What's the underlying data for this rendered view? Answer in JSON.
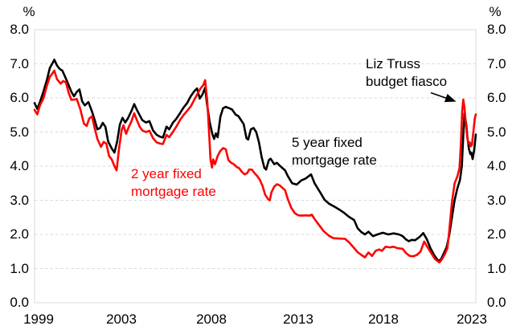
{
  "chart_data": {
    "type": "line",
    "y_axis": {
      "unit_left": "%",
      "unit_right": "%",
      "range": [
        0,
        8
      ],
      "tick_labels": [
        "8.0",
        "7.0",
        "6.0",
        "5.0",
        "4.0",
        "3.0",
        "2.0",
        "1.0",
        "0.0"
      ],
      "gridlines": "horizontal-dashed",
      "sides": "both"
    },
    "x_axis": {
      "range_years": [
        1999,
        2023.58
      ],
      "tick_labels": [
        "1999",
        "2003",
        "2008",
        "2013",
        "2018",
        "2023"
      ]
    },
    "annotation": {
      "line1": "Liz Truss",
      "line2": "budget fiasco"
    },
    "series": [
      {
        "name": "5 year fixed mortgage rate",
        "label_line1": "5 year fixed",
        "label_line2": "mortgage rate",
        "color": "#000000",
        "points": [
          [
            1999.0,
            5.85
          ],
          [
            1999.15,
            5.68
          ],
          [
            1999.3,
            5.88
          ],
          [
            1999.5,
            6.2
          ],
          [
            1999.7,
            6.55
          ],
          [
            1999.85,
            6.88
          ],
          [
            2000.0,
            7.02
          ],
          [
            2000.1,
            7.12
          ],
          [
            2000.25,
            6.95
          ],
          [
            2000.4,
            6.85
          ],
          [
            2000.55,
            6.8
          ],
          [
            2000.7,
            6.62
          ],
          [
            2000.88,
            6.4
          ],
          [
            2001.05,
            6.18
          ],
          [
            2001.2,
            6.05
          ],
          [
            2001.35,
            6.18
          ],
          [
            2001.5,
            6.25
          ],
          [
            2001.65,
            5.9
          ],
          [
            2001.8,
            5.78
          ],
          [
            2002.0,
            5.88
          ],
          [
            2002.2,
            5.6
          ],
          [
            2002.35,
            5.35
          ],
          [
            2002.5,
            5.08
          ],
          [
            2002.65,
            5.12
          ],
          [
            2002.8,
            5.27
          ],
          [
            2002.95,
            5.15
          ],
          [
            2003.1,
            4.72
          ],
          [
            2003.3,
            4.52
          ],
          [
            2003.45,
            4.4
          ],
          [
            2003.6,
            4.72
          ],
          [
            2003.75,
            5.22
          ],
          [
            2003.9,
            5.42
          ],
          [
            2004.05,
            5.28
          ],
          [
            2004.2,
            5.4
          ],
          [
            2004.4,
            5.62
          ],
          [
            2004.55,
            5.82
          ],
          [
            2004.7,
            5.65
          ],
          [
            2004.85,
            5.5
          ],
          [
            2005.0,
            5.35
          ],
          [
            2005.2,
            5.28
          ],
          [
            2005.4,
            5.32
          ],
          [
            2005.6,
            5.05
          ],
          [
            2005.8,
            4.92
          ],
          [
            2006.0,
            4.86
          ],
          [
            2006.15,
            4.84
          ],
          [
            2006.35,
            5.16
          ],
          [
            2006.5,
            5.08
          ],
          [
            2006.7,
            5.27
          ],
          [
            2006.9,
            5.39
          ],
          [
            2007.1,
            5.55
          ],
          [
            2007.3,
            5.72
          ],
          [
            2007.5,
            5.85
          ],
          [
            2007.7,
            6.05
          ],
          [
            2007.9,
            6.2
          ],
          [
            2008.05,
            6.28
          ],
          [
            2008.2,
            5.98
          ],
          [
            2008.35,
            6.1
          ],
          [
            2008.5,
            6.3
          ],
          [
            2008.6,
            5.85
          ],
          [
            2008.75,
            5.3
          ],
          [
            2008.9,
            4.95
          ],
          [
            2009.0,
            4.8
          ],
          [
            2009.1,
            4.96
          ],
          [
            2009.2,
            4.85
          ],
          [
            2009.35,
            5.45
          ],
          [
            2009.5,
            5.7
          ],
          [
            2009.65,
            5.74
          ],
          [
            2009.85,
            5.7
          ],
          [
            2010.0,
            5.66
          ],
          [
            2010.2,
            5.51
          ],
          [
            2010.35,
            5.47
          ],
          [
            2010.5,
            5.35
          ],
          [
            2010.65,
            5.23
          ],
          [
            2010.8,
            4.82
          ],
          [
            2010.9,
            4.78
          ],
          [
            2011.05,
            5.08
          ],
          [
            2011.2,
            5.12
          ],
          [
            2011.35,
            5.0
          ],
          [
            2011.5,
            4.7
          ],
          [
            2011.65,
            4.27
          ],
          [
            2011.8,
            3.95
          ],
          [
            2011.9,
            3.9
          ],
          [
            2012.05,
            4.18
          ],
          [
            2012.15,
            4.22
          ],
          [
            2012.35,
            4.06
          ],
          [
            2012.5,
            4.1
          ],
          [
            2012.65,
            4.02
          ],
          [
            2012.8,
            3.95
          ],
          [
            2012.95,
            3.88
          ],
          [
            2013.1,
            3.72
          ],
          [
            2013.35,
            3.5
          ],
          [
            2013.6,
            3.46
          ],
          [
            2013.85,
            3.58
          ],
          [
            2014.1,
            3.64
          ],
          [
            2014.4,
            3.76
          ],
          [
            2014.6,
            3.5
          ],
          [
            2014.95,
            3.2
          ],
          [
            2015.15,
            3.02
          ],
          [
            2015.4,
            2.9
          ],
          [
            2015.75,
            2.8
          ],
          [
            2016.0,
            2.72
          ],
          [
            2016.2,
            2.65
          ],
          [
            2016.5,
            2.52
          ],
          [
            2016.8,
            2.42
          ],
          [
            2017.0,
            2.18
          ],
          [
            2017.2,
            2.07
          ],
          [
            2017.4,
            2.0
          ],
          [
            2017.6,
            2.08
          ],
          [
            2017.85,
            1.95
          ],
          [
            2018.1,
            2.0
          ],
          [
            2018.4,
            2.05
          ],
          [
            2018.7,
            2.0
          ],
          [
            2019.0,
            2.03
          ],
          [
            2019.3,
            2.0
          ],
          [
            2019.5,
            1.95
          ],
          [
            2019.7,
            1.85
          ],
          [
            2019.85,
            1.8
          ],
          [
            2020.0,
            1.84
          ],
          [
            2020.2,
            1.83
          ],
          [
            2020.45,
            1.93
          ],
          [
            2020.65,
            2.04
          ],
          [
            2020.85,
            1.86
          ],
          [
            2021.05,
            1.6
          ],
          [
            2021.25,
            1.4
          ],
          [
            2021.5,
            1.22
          ],
          [
            2021.65,
            1.28
          ],
          [
            2021.8,
            1.45
          ],
          [
            2021.95,
            1.62
          ],
          [
            2022.1,
            1.98
          ],
          [
            2022.25,
            2.5
          ],
          [
            2022.4,
            3.0
          ],
          [
            2022.55,
            3.35
          ],
          [
            2022.7,
            3.6
          ],
          [
            2022.8,
            4.0
          ],
          [
            2022.88,
            4.9
          ],
          [
            2022.95,
            5.55
          ],
          [
            2023.05,
            5.2
          ],
          [
            2023.12,
            4.8
          ],
          [
            2023.2,
            4.5
          ],
          [
            2023.28,
            4.35
          ],
          [
            2023.33,
            4.4
          ],
          [
            2023.4,
            4.21
          ],
          [
            2023.48,
            4.45
          ],
          [
            2023.58,
            4.93
          ]
        ]
      },
      {
        "name": "2 year fixed mortgage rate",
        "label_line1": "2 year fixed",
        "label_line2": "mortgage rate",
        "color": "#ff0000",
        "points": [
          [
            1999.0,
            5.65
          ],
          [
            1999.15,
            5.52
          ],
          [
            1999.3,
            5.78
          ],
          [
            1999.5,
            6.0
          ],
          [
            1999.7,
            6.38
          ],
          [
            1999.85,
            6.62
          ],
          [
            2000.0,
            6.72
          ],
          [
            2000.1,
            6.8
          ],
          [
            2000.25,
            6.55
          ],
          [
            2000.45,
            6.42
          ],
          [
            2000.6,
            6.5
          ],
          [
            2000.75,
            6.45
          ],
          [
            2000.9,
            6.15
          ],
          [
            2001.05,
            5.94
          ],
          [
            2001.2,
            5.95
          ],
          [
            2001.35,
            5.97
          ],
          [
            2001.55,
            5.66
          ],
          [
            2001.75,
            5.25
          ],
          [
            2001.9,
            5.18
          ],
          [
            2002.05,
            5.4
          ],
          [
            2002.2,
            5.46
          ],
          [
            2002.35,
            5.11
          ],
          [
            2002.5,
            4.8
          ],
          [
            2002.7,
            4.57
          ],
          [
            2002.85,
            4.71
          ],
          [
            2003.0,
            4.66
          ],
          [
            2003.15,
            4.3
          ],
          [
            2003.3,
            4.2
          ],
          [
            2003.45,
            4.0
          ],
          [
            2003.57,
            3.88
          ],
          [
            2003.7,
            4.5
          ],
          [
            2003.85,
            5.05
          ],
          [
            2003.95,
            5.2
          ],
          [
            2004.1,
            4.95
          ],
          [
            2004.25,
            5.15
          ],
          [
            2004.4,
            5.32
          ],
          [
            2004.55,
            5.55
          ],
          [
            2004.7,
            5.35
          ],
          [
            2004.85,
            5.16
          ],
          [
            2005.0,
            5.05
          ],
          [
            2005.2,
            5.0
          ],
          [
            2005.4,
            5.04
          ],
          [
            2005.6,
            4.82
          ],
          [
            2005.8,
            4.7
          ],
          [
            2006.0,
            4.66
          ],
          [
            2006.15,
            4.65
          ],
          [
            2006.35,
            4.92
          ],
          [
            2006.5,
            4.85
          ],
          [
            2006.7,
            5.0
          ],
          [
            2006.9,
            5.16
          ],
          [
            2007.1,
            5.35
          ],
          [
            2007.3,
            5.5
          ],
          [
            2007.5,
            5.62
          ],
          [
            2007.7,
            5.75
          ],
          [
            2007.9,
            5.95
          ],
          [
            2008.1,
            6.15
          ],
          [
            2008.25,
            6.28
          ],
          [
            2008.4,
            6.38
          ],
          [
            2008.5,
            6.52
          ],
          [
            2008.62,
            5.9
          ],
          [
            2008.72,
            5.0
          ],
          [
            2008.8,
            4.2
          ],
          [
            2008.88,
            3.96
          ],
          [
            2008.95,
            4.2
          ],
          [
            2009.05,
            4.06
          ],
          [
            2009.2,
            4.3
          ],
          [
            2009.35,
            4.45
          ],
          [
            2009.5,
            4.53
          ],
          [
            2009.65,
            4.5
          ],
          [
            2009.8,
            4.18
          ],
          [
            2009.95,
            4.1
          ],
          [
            2010.1,
            4.06
          ],
          [
            2010.25,
            3.98
          ],
          [
            2010.4,
            3.94
          ],
          [
            2010.55,
            3.83
          ],
          [
            2010.7,
            3.76
          ],
          [
            2010.85,
            3.8
          ],
          [
            2010.95,
            3.9
          ],
          [
            2011.1,
            3.9
          ],
          [
            2011.25,
            3.8
          ],
          [
            2011.4,
            3.71
          ],
          [
            2011.55,
            3.6
          ],
          [
            2011.7,
            3.42
          ],
          [
            2011.85,
            3.16
          ],
          [
            2012.0,
            3.04
          ],
          [
            2012.1,
            3.0
          ],
          [
            2012.2,
            3.24
          ],
          [
            2012.35,
            3.4
          ],
          [
            2012.5,
            3.47
          ],
          [
            2012.65,
            3.44
          ],
          [
            2012.8,
            3.37
          ],
          [
            2012.95,
            3.3
          ],
          [
            2013.1,
            3.05
          ],
          [
            2013.3,
            2.78
          ],
          [
            2013.5,
            2.62
          ],
          [
            2013.7,
            2.56
          ],
          [
            2013.9,
            2.55
          ],
          [
            2014.1,
            2.56
          ],
          [
            2014.3,
            2.55
          ],
          [
            2014.45,
            2.58
          ],
          [
            2014.6,
            2.45
          ],
          [
            2014.9,
            2.24
          ],
          [
            2015.1,
            2.1
          ],
          [
            2015.4,
            1.96
          ],
          [
            2015.65,
            1.89
          ],
          [
            2015.95,
            1.88
          ],
          [
            2016.3,
            1.87
          ],
          [
            2016.55,
            1.75
          ],
          [
            2016.8,
            1.6
          ],
          [
            2017.0,
            1.48
          ],
          [
            2017.2,
            1.4
          ],
          [
            2017.4,
            1.33
          ],
          [
            2017.6,
            1.47
          ],
          [
            2017.8,
            1.37
          ],
          [
            2018.0,
            1.52
          ],
          [
            2018.2,
            1.56
          ],
          [
            2018.35,
            1.52
          ],
          [
            2018.55,
            1.64
          ],
          [
            2018.8,
            1.62
          ],
          [
            2019.0,
            1.64
          ],
          [
            2019.2,
            1.6
          ],
          [
            2019.5,
            1.58
          ],
          [
            2019.7,
            1.45
          ],
          [
            2019.9,
            1.37
          ],
          [
            2020.1,
            1.36
          ],
          [
            2020.3,
            1.4
          ],
          [
            2020.5,
            1.5
          ],
          [
            2020.7,
            1.79
          ],
          [
            2020.9,
            1.62
          ],
          [
            2021.1,
            1.45
          ],
          [
            2021.3,
            1.28
          ],
          [
            2021.55,
            1.18
          ],
          [
            2021.7,
            1.28
          ],
          [
            2021.85,
            1.42
          ],
          [
            2022.0,
            1.6
          ],
          [
            2022.1,
            2.1
          ],
          [
            2022.25,
            2.95
          ],
          [
            2022.4,
            3.5
          ],
          [
            2022.55,
            3.7
          ],
          [
            2022.67,
            3.94
          ],
          [
            2022.75,
            4.7
          ],
          [
            2022.82,
            5.6
          ],
          [
            2022.88,
            5.95
          ],
          [
            2022.95,
            5.72
          ],
          [
            2023.02,
            5.25
          ],
          [
            2023.1,
            4.85
          ],
          [
            2023.17,
            4.66
          ],
          [
            2023.24,
            4.7
          ],
          [
            2023.3,
            4.58
          ],
          [
            2023.36,
            4.62
          ],
          [
            2023.44,
            5.0
          ],
          [
            2023.52,
            5.4
          ],
          [
            2023.58,
            5.52
          ]
        ]
      }
    ]
  }
}
